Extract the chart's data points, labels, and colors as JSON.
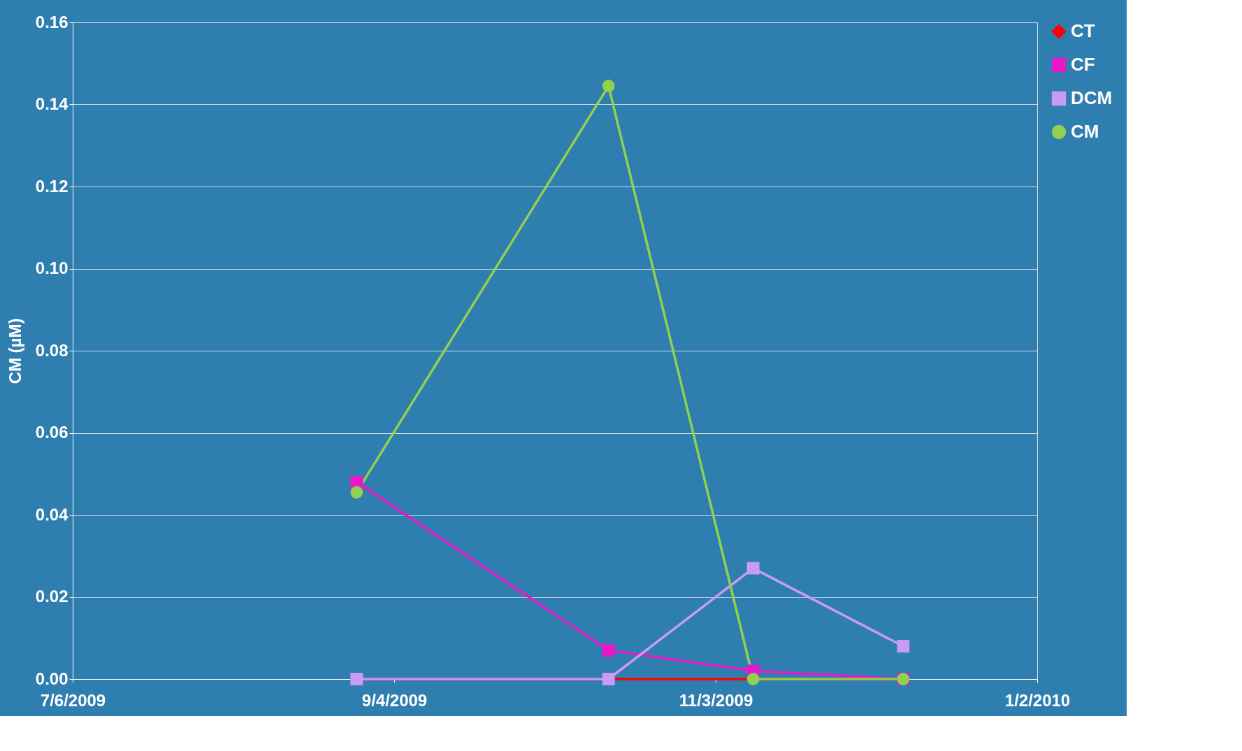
{
  "chart_data": {
    "type": "line",
    "ylabel": "CM (µM)",
    "x": [
      "2009-08-28",
      "2009-10-14",
      "2009-11-10",
      "2009-12-08"
    ],
    "series": [
      {
        "name": "CT",
        "color": "#ff0000",
        "marker": "diamond",
        "values": [
          0,
          0,
          0,
          0
        ]
      },
      {
        "name": "CF",
        "color": "#e619c8",
        "marker": "square",
        "values": [
          0.048,
          0.007,
          0.002,
          0
        ]
      },
      {
        "name": "DCM",
        "color": "#c89cf5",
        "marker": "square",
        "values": [
          0,
          0,
          0.027,
          0.008
        ]
      },
      {
        "name": "CM",
        "color": "#92d050",
        "marker": "circle",
        "values": [
          0.0455,
          0.1445,
          0,
          0
        ]
      }
    ],
    "xlim": [
      "2009-07-06",
      "2010-01-02"
    ],
    "xticks": [
      {
        "value": "2009-07-06",
        "label": "7/6/2009"
      },
      {
        "value": "2009-09-04",
        "label": "9/4/2009"
      },
      {
        "value": "2009-11-03",
        "label": "11/3/2009"
      },
      {
        "value": "2010-01-02",
        "label": "1/2/2010"
      }
    ],
    "ylim": [
      0,
      0.16
    ],
    "yticks": [
      {
        "value": 0,
        "label": "0.00"
      },
      {
        "value": 0.02,
        "label": "0.02"
      },
      {
        "value": 0.04,
        "label": "0.04"
      },
      {
        "value": 0.06,
        "label": "0.06"
      },
      {
        "value": 0.08,
        "label": "0.08"
      },
      {
        "value": 0.1,
        "label": "0.10"
      },
      {
        "value": 0.12,
        "label": "0.12"
      },
      {
        "value": 0.14,
        "label": "0.14"
      },
      {
        "value": 0.16,
        "label": "0.16"
      }
    ],
    "grid": "y",
    "legend": "right",
    "line_style": "solid"
  }
}
